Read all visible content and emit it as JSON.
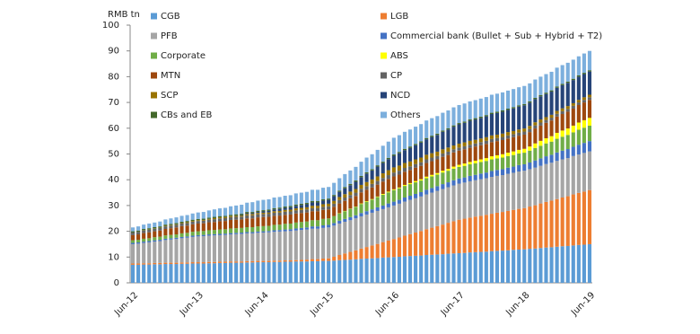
{
  "chart_data": {
    "type": "bar",
    "stacked": true,
    "y_label": "RMB tn",
    "categories": [
      "Jun-12",
      null,
      null,
      null,
      null,
      null,
      null,
      null,
      null,
      null,
      null,
      null,
      "Jun-13",
      null,
      null,
      null,
      null,
      null,
      null,
      null,
      null,
      null,
      null,
      null,
      "Jun-14",
      null,
      null,
      null,
      null,
      null,
      null,
      null,
      null,
      null,
      null,
      null,
      "Jun-15",
      null,
      null,
      null,
      null,
      null,
      null,
      null,
      null,
      null,
      null,
      null,
      "Jun-16",
      null,
      null,
      null,
      null,
      null,
      null,
      null,
      null,
      null,
      null,
      null,
      "Jun-17",
      null,
      null,
      null,
      null,
      null,
      null,
      null,
      null,
      null,
      null,
      null,
      "Jun-18",
      null,
      null,
      null,
      null,
      null,
      null,
      null,
      null,
      null,
      null,
      null,
      "Jun-19"
    ],
    "ylim": [
      0,
      100
    ],
    "yticks": [
      0,
      10,
      20,
      30,
      40,
      50,
      60,
      70,
      80,
      90,
      100
    ],
    "series": [
      {
        "name": "CGB",
        "color": "#5b9bd5",
        "values": [
          7.0,
          7.0,
          7.1,
          7.1,
          7.2,
          7.2,
          7.3,
          7.3,
          7.3,
          7.4,
          7.4,
          7.5,
          7.5,
          7.5,
          7.6,
          7.6,
          7.7,
          7.7,
          7.8,
          7.8,
          7.8,
          7.9,
          7.9,
          8.0,
          8.0,
          8.0,
          8.1,
          8.1,
          8.2,
          8.2,
          8.3,
          8.3,
          8.3,
          8.4,
          8.4,
          8.5,
          8.5,
          8.6,
          8.8,
          8.9,
          9.0,
          9.1,
          9.3,
          9.4,
          9.5,
          9.6,
          9.8,
          9.9,
          10.0,
          10.1,
          10.3,
          10.4,
          10.5,
          10.6,
          10.8,
          10.9,
          11.0,
          11.1,
          11.3,
          11.4,
          11.5,
          11.6,
          11.8,
          11.9,
          12.0,
          12.1,
          12.3,
          12.4,
          12.5,
          12.6,
          12.8,
          12.9,
          13.0,
          13.2,
          13.3,
          13.5,
          13.7,
          13.8,
          14.0,
          14.2,
          14.3,
          14.5,
          14.7,
          14.8,
          15.0
        ]
      },
      {
        "name": "LGB",
        "color": "#ed7d31",
        "values": [
          0.5,
          0.5,
          0.5,
          0.5,
          0.5,
          0.5,
          0.5,
          0.5,
          0.5,
          0.5,
          0.5,
          0.5,
          0.5,
          0.5,
          0.5,
          0.5,
          0.5,
          0.5,
          0.5,
          0.5,
          0.5,
          0.5,
          0.5,
          0.5,
          0.5,
          0.5,
          0.5,
          0.5,
          0.5,
          0.5,
          0.5,
          0.6,
          0.7,
          0.8,
          0.8,
          0.9,
          1.0,
          1.5,
          2.0,
          2.5,
          3.0,
          3.5,
          4.0,
          4.5,
          5.0,
          5.5,
          6.0,
          6.5,
          7.0,
          7.5,
          8.0,
          8.5,
          9.0,
          9.5,
          10.0,
          10.5,
          11.0,
          11.5,
          12.0,
          12.5,
          13.0,
          13.3,
          13.5,
          13.8,
          14.0,
          14.3,
          14.5,
          14.8,
          15.0,
          15.3,
          15.5,
          15.8,
          16.0,
          16.4,
          16.8,
          17.3,
          17.7,
          18.1,
          18.5,
          18.9,
          19.3,
          19.8,
          20.2,
          20.6,
          21.0
        ]
      },
      {
        "name": "PFB",
        "color": "#a5a5a5",
        "values": [
          7.5,
          7.7,
          7.9,
          8.1,
          8.3,
          8.5,
          8.8,
          9.0,
          9.2,
          9.4,
          9.6,
          9.8,
          10.0,
          10.1,
          10.2,
          10.3,
          10.3,
          10.4,
          10.5,
          10.6,
          10.7,
          10.8,
          10.8,
          10.9,
          11.0,
          11.1,
          11.2,
          11.3,
          11.3,
          11.4,
          11.5,
          11.6,
          11.7,
          11.8,
          11.8,
          11.9,
          12.0,
          12.1,
          12.2,
          12.3,
          12.3,
          12.4,
          12.5,
          12.6,
          12.7,
          12.8,
          12.8,
          12.9,
          13.0,
          13.1,
          13.2,
          13.3,
          13.3,
          13.4,
          13.5,
          13.6,
          13.7,
          13.8,
          13.8,
          13.9,
          14.0,
          14.0,
          14.1,
          14.1,
          14.2,
          14.2,
          14.3,
          14.3,
          14.3,
          14.4,
          14.4,
          14.5,
          14.5,
          14.5,
          14.6,
          14.6,
          14.7,
          14.7,
          14.8,
          14.8,
          14.8,
          14.9,
          14.9,
          15.0,
          15.0
        ]
      },
      {
        "name": "Commercial bank (Bullet + Sub + Hybrid + T2)",
        "color": "#4472c4",
        "values": [
          0.5,
          0.5,
          0.5,
          0.5,
          0.5,
          0.5,
          0.5,
          0.5,
          0.5,
          0.5,
          0.5,
          0.5,
          0.5,
          0.5,
          0.5,
          0.5,
          0.5,
          0.5,
          0.5,
          0.5,
          0.5,
          0.5,
          0.5,
          0.5,
          0.5,
          0.5,
          0.6,
          0.6,
          0.7,
          0.7,
          0.8,
          0.8,
          0.8,
          0.9,
          0.9,
          1.0,
          1.0,
          1.0,
          1.1,
          1.1,
          1.2,
          1.2,
          1.3,
          1.3,
          1.3,
          1.4,
          1.4,
          1.5,
          1.5,
          1.5,
          1.6,
          1.6,
          1.7,
          1.7,
          1.8,
          1.8,
          1.8,
          1.9,
          1.9,
          2.0,
          2.0,
          2.0,
          2.1,
          2.1,
          2.2,
          2.2,
          2.3,
          2.3,
          2.3,
          2.4,
          2.4,
          2.5,
          2.5,
          2.6,
          2.8,
          2.9,
          3.0,
          3.1,
          3.3,
          3.4,
          3.5,
          3.6,
          3.8,
          3.9,
          4.0
        ]
      },
      {
        "name": "Corporate",
        "color": "#70ad47",
        "values": [
          1.0,
          1.0,
          1.1,
          1.1,
          1.2,
          1.2,
          1.3,
          1.3,
          1.3,
          1.4,
          1.4,
          1.5,
          1.5,
          1.5,
          1.6,
          1.6,
          1.7,
          1.7,
          1.8,
          1.8,
          1.8,
          1.9,
          1.9,
          2.0,
          2.0,
          2.0,
          2.1,
          2.1,
          2.2,
          2.2,
          2.3,
          2.3,
          2.3,
          2.4,
          2.4,
          2.5,
          2.5,
          2.7,
          2.8,
          3.0,
          3.2,
          3.3,
          3.5,
          3.7,
          3.8,
          4.0,
          4.2,
          4.3,
          4.5,
          4.5,
          4.5,
          4.5,
          4.5,
          4.5,
          4.5,
          4.5,
          4.5,
          4.5,
          4.5,
          4.5,
          4.5,
          4.5,
          4.5,
          4.5,
          4.5,
          4.5,
          4.5,
          4.5,
          4.5,
          4.5,
          4.5,
          4.5,
          4.5,
          4.6,
          4.8,
          4.9,
          5.0,
          5.1,
          5.3,
          5.4,
          5.5,
          5.6,
          5.8,
          5.9,
          6.0
        ]
      },
      {
        "name": "ABS",
        "color": "#ffff00",
        "values": [
          0,
          0,
          0,
          0,
          0,
          0,
          0,
          0,
          0,
          0,
          0,
          0,
          0,
          0,
          0,
          0,
          0,
          0,
          0,
          0,
          0,
          0,
          0,
          0,
          0,
          0,
          0,
          0,
          0,
          0,
          0,
          0,
          0,
          0,
          0,
          0,
          0,
          0.0,
          0.1,
          0.1,
          0.1,
          0.1,
          0.2,
          0.2,
          0.2,
          0.2,
          0.3,
          0.3,
          0.3,
          0.3,
          0.4,
          0.4,
          0.5,
          0.5,
          0.6,
          0.6,
          0.6,
          0.7,
          0.7,
          0.8,
          0.8,
          0.9,
          0.9,
          1.0,
          1.0,
          1.1,
          1.2,
          1.2,
          1.3,
          1.3,
          1.4,
          1.4,
          1.5,
          1.6,
          1.8,
          1.9,
          2.0,
          2.1,
          2.3,
          2.4,
          2.5,
          2.6,
          2.8,
          2.9,
          3.0
        ]
      },
      {
        "name": "MTN",
        "color": "#9e480e",
        "values": [
          2.0,
          2.1,
          2.2,
          2.3,
          2.3,
          2.4,
          2.5,
          2.6,
          2.7,
          2.8,
          2.8,
          2.9,
          3.0,
          3.0,
          3.1,
          3.1,
          3.2,
          3.2,
          3.3,
          3.3,
          3.3,
          3.4,
          3.4,
          3.5,
          3.5,
          3.5,
          3.5,
          3.5,
          3.5,
          3.5,
          3.5,
          3.5,
          3.5,
          3.5,
          3.5,
          3.5,
          3.5,
          3.6,
          3.8,
          3.9,
          4.0,
          4.1,
          4.3,
          4.4,
          4.5,
          4.6,
          4.8,
          4.9,
          5.0,
          5.0,
          5.1,
          5.1,
          5.2,
          5.2,
          5.3,
          5.3,
          5.3,
          5.4,
          5.4,
          5.5,
          5.5,
          5.5,
          5.5,
          5.5,
          5.5,
          5.5,
          5.5,
          5.5,
          5.5,
          5.5,
          5.5,
          5.5,
          5.5,
          5.6,
          5.8,
          5.9,
          6.0,
          6.1,
          6.3,
          6.4,
          6.5,
          6.6,
          6.8,
          6.9,
          7.0
        ]
      },
      {
        "name": "CP",
        "color": "#636363",
        "values": [
          1.0,
          1.0,
          1.0,
          1.0,
          1.0,
          1.0,
          1.0,
          1.0,
          1.0,
          1.0,
          1.0,
          1.0,
          1.0,
          1.0,
          1.0,
          1.1,
          1.1,
          1.1,
          1.1,
          1.1,
          1.1,
          1.2,
          1.2,
          1.2,
          1.2,
          1.2,
          1.2,
          1.2,
          1.2,
          1.2,
          1.2,
          1.2,
          1.2,
          1.2,
          1.2,
          1.2,
          1.2,
          1.2,
          1.3,
          1.3,
          1.3,
          1.3,
          1.4,
          1.4,
          1.4,
          1.4,
          1.4,
          1.5,
          1.5,
          1.5,
          1.5,
          1.4,
          1.4,
          1.4,
          1.4,
          1.4,
          1.3,
          1.3,
          1.3,
          1.2,
          1.2,
          1.2,
          1.2,
          1.2,
          1.2,
          1.2,
          1.2,
          1.2,
          1.2,
          1.2,
          1.2,
          1.2,
          1.2,
          1.2,
          1.2,
          1.2,
          1.1,
          1.1,
          1.1,
          1.1,
          1.1,
          1.1,
          1.0,
          1.0,
          1.0
        ]
      },
      {
        "name": "SCP",
        "color": "#997300",
        "values": [
          0.0,
          0.0,
          0.1,
          0.1,
          0.1,
          0.1,
          0.2,
          0.2,
          0.2,
          0.2,
          0.3,
          0.3,
          0.3,
          0.3,
          0.3,
          0.4,
          0.4,
          0.4,
          0.4,
          0.4,
          0.4,
          0.5,
          0.5,
          0.5,
          0.5,
          0.5,
          0.6,
          0.6,
          0.7,
          0.7,
          0.8,
          0.8,
          0.8,
          0.9,
          0.9,
          1.0,
          1.0,
          1.1,
          1.2,
          1.3,
          1.3,
          1.4,
          1.5,
          1.6,
          1.7,
          1.8,
          1.8,
          1.9,
          2.0,
          2.0,
          1.9,
          1.9,
          1.8,
          1.8,
          1.8,
          1.7,
          1.7,
          1.6,
          1.6,
          1.5,
          1.5,
          1.5,
          1.5,
          1.4,
          1.4,
          1.4,
          1.4,
          1.3,
          1.3,
          1.3,
          1.2,
          1.2,
          1.2,
          1.2,
          1.2,
          1.2,
          1.1,
          1.1,
          1.1,
          1.1,
          1.1,
          1.0,
          1.0,
          1.0,
          1.0
        ]
      },
      {
        "name": "NCD",
        "color": "#264478",
        "values": [
          0,
          0,
          0,
          0,
          0,
          0,
          0,
          0,
          0,
          0,
          0,
          0,
          0,
          0,
          0,
          0,
          0,
          0,
          0,
          0.1,
          0.2,
          0.3,
          0.3,
          0.4,
          0.5,
          0.6,
          0.7,
          0.8,
          0.8,
          0.9,
          1.0,
          1.1,
          1.2,
          1.3,
          1.3,
          1.4,
          1.5,
          1.8,
          2.0,
          2.3,
          2.5,
          2.8,
          3.0,
          3.3,
          3.5,
          3.8,
          4.0,
          4.3,
          4.5,
          4.8,
          5.0,
          5.3,
          5.5,
          5.8,
          6.0,
          6.3,
          6.5,
          6.8,
          7.0,
          7.3,
          7.5,
          7.6,
          7.8,
          7.9,
          8.0,
          8.1,
          8.3,
          8.4,
          8.5,
          8.6,
          8.8,
          8.9,
          9.0,
          9.0,
          9.0,
          9.0,
          9.0,
          9.0,
          9.0,
          9.0,
          9.0,
          9.0,
          9.0,
          9.0,
          9.0
        ]
      },
      {
        "name": "CBs and EB",
        "color": "#43682b",
        "values": [
          0.5,
          0.5,
          0.5,
          0.5,
          0.5,
          0.5,
          0.5,
          0.5,
          0.5,
          0.5,
          0.5,
          0.5,
          0.5,
          0.5,
          0.5,
          0.5,
          0.5,
          0.5,
          0.5,
          0.5,
          0.5,
          0.5,
          0.5,
          0.5,
          0.5,
          0.5,
          0.5,
          0.5,
          0.5,
          0.5,
          0.5,
          0.5,
          0.5,
          0.5,
          0.5,
          0.5,
          0.5,
          0.5,
          0.5,
          0.5,
          0.5,
          0.5,
          0.5,
          0.5,
          0.5,
          0.5,
          0.5,
          0.5,
          0.5,
          0.5,
          0.5,
          0.5,
          0.5,
          0.5,
          0.5,
          0.5,
          0.5,
          0.5,
          0.5,
          0.5,
          0.5,
          0.5,
          0.5,
          0.5,
          0.5,
          0.5,
          0.5,
          0.5,
          0.5,
          0.5,
          0.5,
          0.5,
          0.5,
          0.5,
          0.5,
          0.5,
          0.5,
          0.5,
          0.5,
          0.5,
          0.5,
          0.5,
          0.5,
          0.5,
          0.5
        ]
      },
      {
        "name": "Others",
        "color": "#7cafdd",
        "values": [
          1.5,
          1.6,
          1.7,
          1.8,
          1.8,
          1.9,
          2.0,
          2.1,
          2.2,
          2.3,
          2.3,
          2.4,
          2.5,
          2.6,
          2.8,
          2.9,
          3.0,
          3.1,
          3.3,
          3.4,
          3.5,
          3.6,
          3.8,
          3.9,
          4.0,
          4.0,
          4.1,
          4.1,
          4.2,
          4.2,
          4.3,
          4.3,
          4.3,
          4.4,
          4.4,
          4.5,
          4.5,
          4.7,
          4.8,
          5.0,
          5.2,
          5.3,
          5.5,
          5.7,
          5.8,
          6.0,
          6.2,
          6.3,
          6.5,
          6.5,
          6.6,
          6.6,
          6.7,
          6.7,
          6.8,
          6.8,
          6.8,
          6.9,
          6.9,
          7.0,
          7.0,
          7.0,
          7.0,
          7.0,
          7.0,
          7.0,
          7.0,
          7.0,
          7.0,
          7.0,
          7.0,
          7.0,
          7.0,
          7.0,
          7.1,
          7.1,
          7.2,
          7.2,
          7.3,
          7.3,
          7.3,
          7.4,
          7.4,
          7.5,
          7.5
        ]
      }
    ]
  }
}
